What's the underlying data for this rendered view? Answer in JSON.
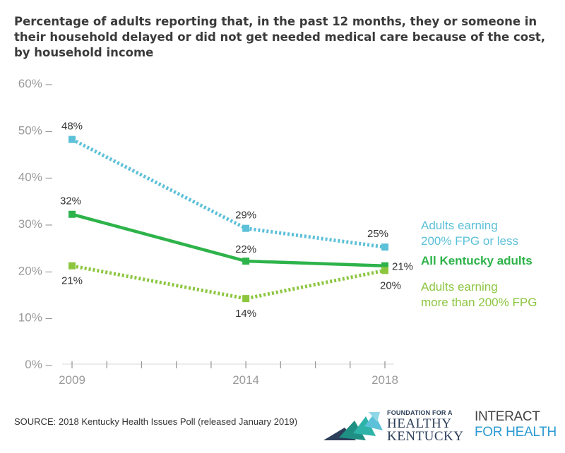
{
  "title": "Percentage of adults reporting that, in the past 12 months, they or someone in their household delayed or did not get needed medical care because of the cost, by household income",
  "source": "SOURCE: 2018 Kentucky Health Issues Poll (released January 2019)",
  "logos": {
    "fhk_small": "FOUNDATION FOR A",
    "fhk_line1": "HEALTHY",
    "fhk_line2": "KENTUCKY",
    "ifh_line1": "INTERACT",
    "ifh_line2": "FOR HEALTH"
  },
  "colors": {
    "light_blue": "#5bc0d8",
    "dark_green": "#2db34a",
    "light_green": "#8cc63f",
    "axis": "#9a9a9a"
  },
  "chart_data": {
    "type": "line",
    "title": "Percentage of adults reporting that, in the past 12 months, they or someone in their household delayed or did not get needed medical care because of the cost, by household income",
    "x": [
      2009,
      2014,
      2018
    ],
    "x_tick_labels": [
      "2009",
      "2014",
      "2018"
    ],
    "xlim": [
      2009,
      2018
    ],
    "ylim": [
      0,
      60
    ],
    "y_ticks": [
      0,
      10,
      20,
      30,
      40,
      50,
      60
    ],
    "y_tick_labels": [
      "0% –",
      "10% –",
      "20% –",
      "30% –",
      "40% –",
      "50% –",
      "60% –"
    ],
    "grid": false,
    "legend_placement": "right",
    "series": [
      {
        "name": "Adults earning 200% FPG or less",
        "legend_lines": [
          "Adults earning",
          "200% FPG or less"
        ],
        "values": [
          48,
          29,
          25
        ],
        "labels": [
          "48%",
          "29%",
          "25%"
        ],
        "color": "#5bc0d8",
        "style": "dotted"
      },
      {
        "name": "All Kentucky adults",
        "legend_lines": [
          "All Kentucky adults"
        ],
        "values": [
          32,
          22,
          21
        ],
        "labels": [
          "32%",
          "22%",
          "21%"
        ],
        "color": "#2db34a",
        "style": "solid"
      },
      {
        "name": "Adults earning more than 200% FPG",
        "legend_lines": [
          "Adults earning",
          "more than 200% FPG"
        ],
        "values": [
          21,
          14,
          20
        ],
        "labels": [
          "21%",
          "14%",
          "20%"
        ],
        "color": "#8cc63f",
        "style": "dotted"
      }
    ]
  }
}
